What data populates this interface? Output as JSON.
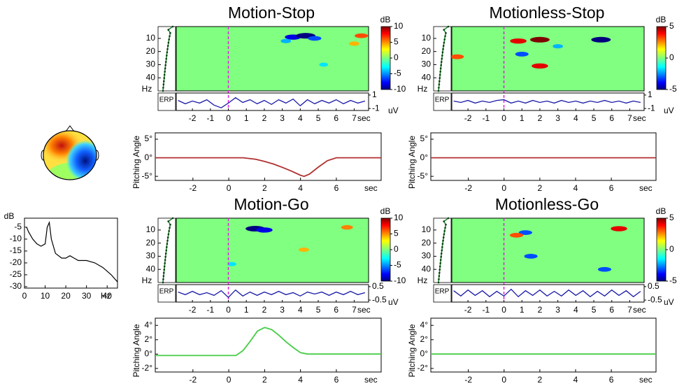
{
  "chart_data": [
    {
      "type": "line",
      "ylabel": "dB",
      "xlabel": "Hz",
      "color": "#000000",
      "x": [
        1,
        2,
        4,
        6,
        8,
        10,
        11,
        12,
        13,
        15,
        18,
        20,
        22,
        24,
        26,
        30,
        34,
        38,
        42,
        45
      ],
      "values": [
        -5,
        -7,
        -10,
        -12,
        -13,
        -12,
        -5,
        -3,
        -10,
        -16,
        -18,
        -18,
        -17,
        -18,
        -19,
        -19,
        -20,
        -22,
        -25,
        -28
      ],
      "xlim": [
        0,
        45
      ],
      "ylim": [
        -30.6,
        -1.2
      ],
      "xticks": [
        0,
        10,
        20,
        30,
        40
      ],
      "yticks": [
        -5,
        -10,
        -15,
        -20,
        -25,
        -30
      ]
    },
    {
      "type": "ersp",
      "title": "Motion-Stop",
      "xlabel": "sec",
      "ylabel": "Hz",
      "colorbar_label": "dB",
      "xlim": [
        -2.9,
        7.8
      ],
      "ylim": [
        1,
        50
      ],
      "xticks": [
        -2,
        -1,
        0,
        1,
        2,
        3,
        4,
        5,
        6,
        7
      ],
      "yticks": [
        10,
        20,
        30,
        40
      ],
      "clim": [
        -10,
        10
      ],
      "cticks": [
        10,
        5,
        0,
        -5,
        -10
      ],
      "cells": [
        {
          "x": 3.6,
          "y": 9,
          "v": -8
        },
        {
          "x": 4.3,
          "y": 8,
          "v": -10
        },
        {
          "x": 4.8,
          "y": 10,
          "v": -6
        },
        {
          "x": 7.4,
          "y": 8,
          "v": 6
        },
        {
          "x": 7.0,
          "y": 14,
          "v": 4
        },
        {
          "x": 3.2,
          "y": 12,
          "v": -4
        },
        {
          "x": 5.3,
          "y": 30,
          "v": -3
        }
      ],
      "erp": {
        "label": "ERP",
        "unit": "uV",
        "color": "#1a1aa8",
        "ylim": [
          -1.3,
          1.3
        ],
        "yticks": [
          1,
          -1
        ],
        "x": [
          -2.8,
          -2.4,
          -2.0,
          -1.6,
          -1.2,
          -0.8,
          -0.4,
          0,
          0.4,
          0.8,
          1.2,
          1.6,
          2.0,
          2.4,
          2.8,
          3.2,
          3.6,
          4.0,
          4.4,
          4.8,
          5.2,
          5.6,
          6.0,
          6.4,
          6.8,
          7.2,
          7.6
        ],
        "values": [
          0.2,
          -0.3,
          0.1,
          -0.2,
          0.3,
          -0.5,
          -0.9,
          -0.2,
          0.6,
          -0.1,
          0.3,
          -0.3,
          0.2,
          -0.4,
          0.3,
          -0.2,
          0.4,
          -0.6,
          0.3,
          -0.3,
          0.2,
          -0.2,
          0.3,
          -0.3,
          0.2,
          -0.2,
          0.1
        ]
      }
    },
    {
      "type": "ersp",
      "title": "Motionless-Stop",
      "xlabel": "sec",
      "ylabel": "Hz",
      "colorbar_label": "dB",
      "xlim": [
        -2.9,
        7.8
      ],
      "ylim": [
        1,
        50
      ],
      "xticks": [
        -2,
        -1,
        0,
        1,
        2,
        3,
        4,
        5,
        6,
        7
      ],
      "yticks": [
        10,
        20,
        30,
        40
      ],
      "clim": [
        -5,
        5
      ],
      "cticks": [
        5,
        0,
        -5
      ],
      "cells": [
        {
          "x": 0.8,
          "y": 12,
          "v": 4
        },
        {
          "x": 2.0,
          "y": 11,
          "v": 5
        },
        {
          "x": 5.4,
          "y": 11,
          "v": -5
        },
        {
          "x": 2.0,
          "y": 31,
          "v": 4
        },
        {
          "x": 1.0,
          "y": 22,
          "v": -3
        },
        {
          "x": -2.6,
          "y": 24,
          "v": 3
        },
        {
          "x": 3.0,
          "y": 16,
          "v": -2
        }
      ],
      "erp": {
        "label": "ERP",
        "unit": "uV",
        "color": "#1a1aa8",
        "ylim": [
          -1.3,
          1.3
        ],
        "yticks": [
          1,
          -1
        ],
        "x": [
          -2.8,
          -2.4,
          -2.0,
          -1.6,
          -1.2,
          -0.8,
          -0.4,
          0,
          0.4,
          0.8,
          1.2,
          1.6,
          2.0,
          2.4,
          2.8,
          3.2,
          3.6,
          4.0,
          4.4,
          4.8,
          5.2,
          5.6,
          6.0,
          6.4,
          6.8,
          7.2,
          7.6
        ],
        "values": [
          0.1,
          -0.1,
          0.2,
          -0.2,
          0.1,
          -0.1,
          0.2,
          0.3,
          -0.2,
          0.1,
          -0.2,
          0.2,
          -0.1,
          0.1,
          -0.2,
          0.2,
          -0.1,
          0.1,
          -0.2,
          0.1,
          -0.1,
          0.2,
          -0.1,
          0.1,
          -0.2,
          0.1,
          -0.1
        ]
      }
    },
    {
      "type": "ersp",
      "title": "Motion-Go",
      "xlabel": "sec",
      "ylabel": "Hz",
      "colorbar_label": "dB",
      "xlim": [
        -2.9,
        7.8
      ],
      "ylim": [
        1,
        50
      ],
      "xticks": [
        -2,
        -1,
        0,
        1,
        2,
        3,
        4,
        5,
        6,
        7
      ],
      "yticks": [
        10,
        20,
        30,
        40
      ],
      "clim": [
        -10,
        10
      ],
      "cticks": [
        10,
        5,
        0,
        -5,
        -10
      ],
      "cells": [
        {
          "x": 1.5,
          "y": 9,
          "v": -10
        },
        {
          "x": 2.0,
          "y": 10,
          "v": -8
        },
        {
          "x": 6.6,
          "y": 8,
          "v": 5
        },
        {
          "x": 4.2,
          "y": 25,
          "v": 4
        },
        {
          "x": 0.2,
          "y": 36,
          "v": -3
        }
      ],
      "erp": {
        "label": "ERP",
        "unit": "uV",
        "color": "#1a1aa8",
        "ylim": [
          -0.65,
          0.65
        ],
        "yticks": [
          0.5,
          -0.5
        ],
        "x": [
          -2.8,
          -2.4,
          -2.0,
          -1.6,
          -1.2,
          -0.8,
          -0.4,
          0,
          0.4,
          0.8,
          1.2,
          1.6,
          2.0,
          2.4,
          2.8,
          3.2,
          3.6,
          4.0,
          4.4,
          4.8,
          5.2,
          5.6,
          6.0,
          6.4,
          6.8,
          7.2,
          7.6
        ],
        "values": [
          0.1,
          -0.1,
          0.15,
          -0.1,
          0.05,
          -0.15,
          0.2,
          -0.3,
          0.25,
          -0.2,
          0.1,
          -0.15,
          0.1,
          -0.1,
          0.15,
          -0.1,
          0.05,
          -0.2,
          0.1,
          -0.05,
          0.1,
          -0.15,
          0.1,
          -0.1,
          0.15,
          -0.1,
          0.05
        ]
      }
    },
    {
      "type": "ersp",
      "title": "Motionless-Go",
      "xlabel": "sec",
      "ylabel": "Hz",
      "colorbar_label": "dB",
      "xlim": [
        -2.9,
        7.8
      ],
      "ylim": [
        1,
        50
      ],
      "xticks": [
        -2,
        -1,
        0,
        1,
        2,
        3,
        4,
        5,
        6,
        7
      ],
      "yticks": [
        10,
        20,
        30,
        40
      ],
      "clim": [
        -5,
        5
      ],
      "cticks": [
        5,
        0,
        -5
      ],
      "cells": [
        {
          "x": 1.5,
          "y": 30,
          "v": -3
        },
        {
          "x": 1.2,
          "y": 12,
          "v": -3
        },
        {
          "x": 6.4,
          "y": 9,
          "v": 4
        },
        {
          "x": 5.6,
          "y": 40,
          "v": -3
        },
        {
          "x": 0.7,
          "y": 14,
          "v": 3
        }
      ],
      "erp": {
        "label": "ERP",
        "unit": "uV",
        "color": "#1a1aa8",
        "ylim": [
          -0.65,
          0.65
        ],
        "yticks": [
          0.5,
          -0.5
        ],
        "x": [
          -2.8,
          -2.4,
          -2.0,
          -1.6,
          -1.2,
          -0.8,
          -0.4,
          0,
          0.4,
          0.8,
          1.2,
          1.6,
          2.0,
          2.4,
          2.8,
          3.2,
          3.6,
          4.0,
          4.4,
          4.8,
          5.2,
          5.6,
          6.0,
          6.4,
          6.8,
          7.2,
          7.6
        ],
        "values": [
          0.2,
          -0.2,
          0.25,
          -0.15,
          0.2,
          -0.25,
          0.15,
          -0.2,
          0.3,
          -0.25,
          0.2,
          -0.15,
          0.25,
          -0.2,
          0.15,
          -0.2,
          0.25,
          -0.15,
          0.2,
          -0.25,
          0.15,
          -0.2,
          0.25,
          -0.15,
          0.2,
          -0.25,
          0.15
        ]
      }
    },
    {
      "type": "line",
      "ylabel": "Pitching Angle",
      "xlabel": "sec",
      "color": "#b03030",
      "x": [
        -4.1,
        0.8,
        1.5,
        2,
        2.5,
        3,
        3.5,
        4,
        4.2,
        4.5,
        5,
        5.5,
        6,
        8.5
      ],
      "values": [
        0,
        0,
        -0.4,
        -1,
        -1.7,
        -2.6,
        -3.6,
        -4.7,
        -5,
        -4.4,
        -2.5,
        -0.8,
        0,
        0
      ],
      "xlim": [
        -4.1,
        8.5
      ],
      "ylim": [
        -6.1,
        6.7
      ],
      "xticks": [
        -2,
        0,
        2,
        4,
        6
      ],
      "yticks": [
        {
          "value": 5,
          "label": "5°"
        },
        {
          "value": 0,
          "label": "0°"
        },
        {
          "value": -5,
          "label": "-5°"
        }
      ]
    },
    {
      "type": "line",
      "ylabel": "Pitching Angle",
      "xlabel": "sec",
      "color": "#b03030",
      "x": [
        -4.1,
        8.5
      ],
      "values": [
        0,
        0
      ],
      "xlim": [
        -4.1,
        8.5
      ],
      "ylim": [
        -6.1,
        6.7
      ],
      "xticks": [
        -2,
        0,
        2,
        4,
        6
      ],
      "yticks": [
        {
          "value": 5,
          "label": "5°"
        },
        {
          "value": 0,
          "label": "0°"
        },
        {
          "value": -5,
          "label": "-5°"
        }
      ]
    },
    {
      "type": "line",
      "ylabel": "Pitching Angle",
      "xlabel": "sec",
      "color": "#44cc44",
      "x": [
        -4.1,
        0.4,
        0.8,
        1.2,
        1.6,
        2,
        2.4,
        2.8,
        3.2,
        3.6,
        4,
        4.4,
        8.5
      ],
      "values": [
        -0.2,
        -0.2,
        0.5,
        1.8,
        3.2,
        3.7,
        3.4,
        2.6,
        1.7,
        0.9,
        0.2,
        0,
        0
      ],
      "xlim": [
        -4.1,
        8.5
      ],
      "ylim": [
        -2.5,
        5
      ],
      "xticks": [
        -2,
        0,
        2,
        4,
        6
      ],
      "yticks": [
        {
          "value": 4,
          "label": "4°"
        },
        {
          "value": 2,
          "label": "2°"
        },
        {
          "value": 0,
          "label": "0°"
        },
        {
          "value": -2,
          "label": "-2°"
        }
      ]
    },
    {
      "type": "line",
      "ylabel": "Pitching Angle",
      "xlabel": "sec",
      "color": "#44cc44",
      "x": [
        -4.1,
        8.5
      ],
      "values": [
        0,
        0
      ],
      "xlim": [
        -4.1,
        8.5
      ],
      "ylim": [
        -2.5,
        5
      ],
      "xticks": [
        -2,
        0,
        2,
        4,
        6
      ],
      "yticks": [
        {
          "value": 4,
          "label": "4°"
        },
        {
          "value": 2,
          "label": "2°"
        },
        {
          "value": 0,
          "label": "0°"
        },
        {
          "value": -2,
          "label": "-2°"
        }
      ]
    }
  ]
}
